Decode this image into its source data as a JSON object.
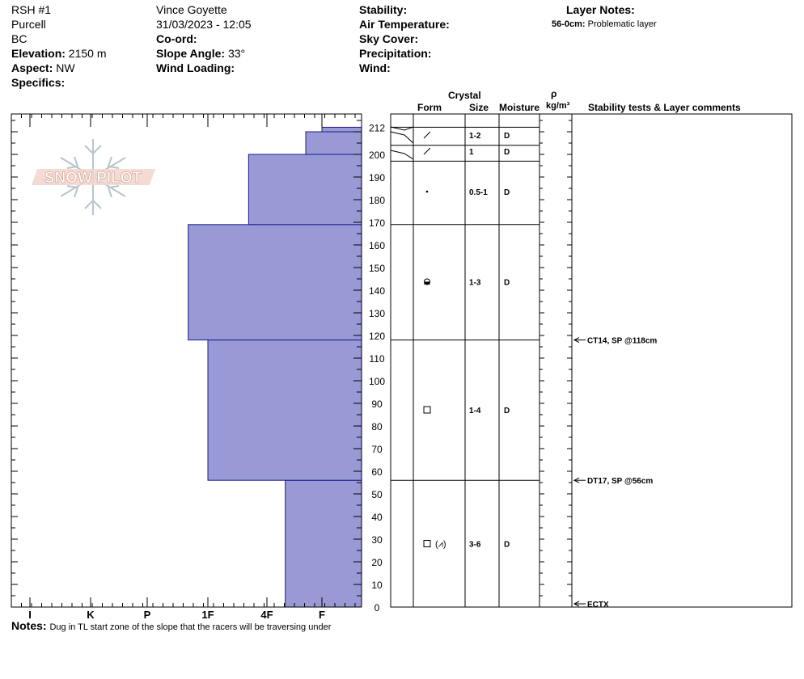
{
  "header": {
    "site_name": "RSH #1",
    "range": "Purcell",
    "region": "BC",
    "elevation_label": "Elevation:",
    "elevation_value": "2150 m",
    "aspect_label": "Aspect:",
    "aspect_value": "NW",
    "specifics_label": "Specifics:",
    "observer": "Vince Goyette",
    "datetime": "31/03/2023 - 12:05",
    "coord_label": "Co-ord:",
    "slope_label": "Slope Angle:",
    "slope_value": "33°",
    "wind_loading_label": "Wind Loading:",
    "stability_label": "Stability:",
    "air_temp_label": "Air Temperature:",
    "sky_cover_label": "Sky Cover:",
    "precip_label": "Precipitation:",
    "wind_label": "Wind:",
    "layer_notes_label": "Layer Notes:",
    "layer_note_range": "56-0cm:",
    "layer_note_text": "Problematic layer"
  },
  "logo_text": "SNOW PILOT",
  "columns": {
    "crystal": "Crystal",
    "form": "Form",
    "size": "Size",
    "moisture": "Moisture",
    "rho": "ρ",
    "density_unit": "kg/m³",
    "comments": "Stability tests & Layer comments"
  },
  "notes": {
    "label": "Notes:",
    "text": "Dug in TL start zone of the slope that the racers will be traversing under"
  },
  "colors": {
    "hardness_fill": "#9999d6",
    "hardness_stroke": "#1a1a8c"
  },
  "chart_data": {
    "type": "bar",
    "orientation": "horizontal-step",
    "xlabel": "",
    "ylabel": "",
    "hardness_ticks": [
      "I",
      "K",
      "P",
      "1F",
      "4F",
      "F"
    ],
    "ylim": [
      0,
      218
    ],
    "y_ticks": [
      0,
      10,
      20,
      30,
      40,
      50,
      60,
      70,
      80,
      90,
      100,
      110,
      120,
      130,
      140,
      150,
      160,
      170,
      180,
      190,
      200,
      212
    ],
    "hardness_layers": [
      {
        "from": 0,
        "to": 56,
        "hardness": "4F+"
      },
      {
        "from": 56,
        "to": 118,
        "hardness": "1F"
      },
      {
        "from": 118,
        "to": 169,
        "hardness": "1F-"
      },
      {
        "from": 169,
        "to": 200,
        "hardness": "4F-"
      },
      {
        "from": 200,
        "to": 210,
        "hardness": "F-"
      },
      {
        "from": 210,
        "to": 212,
        "hardness": "F"
      }
    ],
    "layers": [
      {
        "top": 212,
        "bottom": 204,
        "form_icon": "slash-icon",
        "size": "1-2",
        "moisture": "D"
      },
      {
        "top": 204,
        "bottom": 197,
        "form_icon": "slash-icon",
        "size": "1",
        "moisture": "D"
      },
      {
        "top": 197,
        "bottom": 169,
        "form_icon": "dot-icon",
        "size": "0.5-1",
        "moisture": "D"
      },
      {
        "top": 169,
        "bottom": 118,
        "form_icon": "rounded-facet-icon",
        "size": "1-3",
        "moisture": "D"
      },
      {
        "top": 118,
        "bottom": 56,
        "form_icon": "square-icon",
        "size": "1-4",
        "moisture": "D"
      },
      {
        "top": 56,
        "bottom": 0,
        "form_icon": "square-depth-hoar-icon",
        "form_text": "□ (⩘)",
        "size": "3-6",
        "moisture": "D"
      }
    ],
    "tests": [
      {
        "depth": 118,
        "label": "CT14, SP @118cm"
      },
      {
        "depth": 56,
        "label": "DT17, SP @56cm"
      },
      {
        "depth": 0,
        "label": "ECTX"
      }
    ]
  }
}
